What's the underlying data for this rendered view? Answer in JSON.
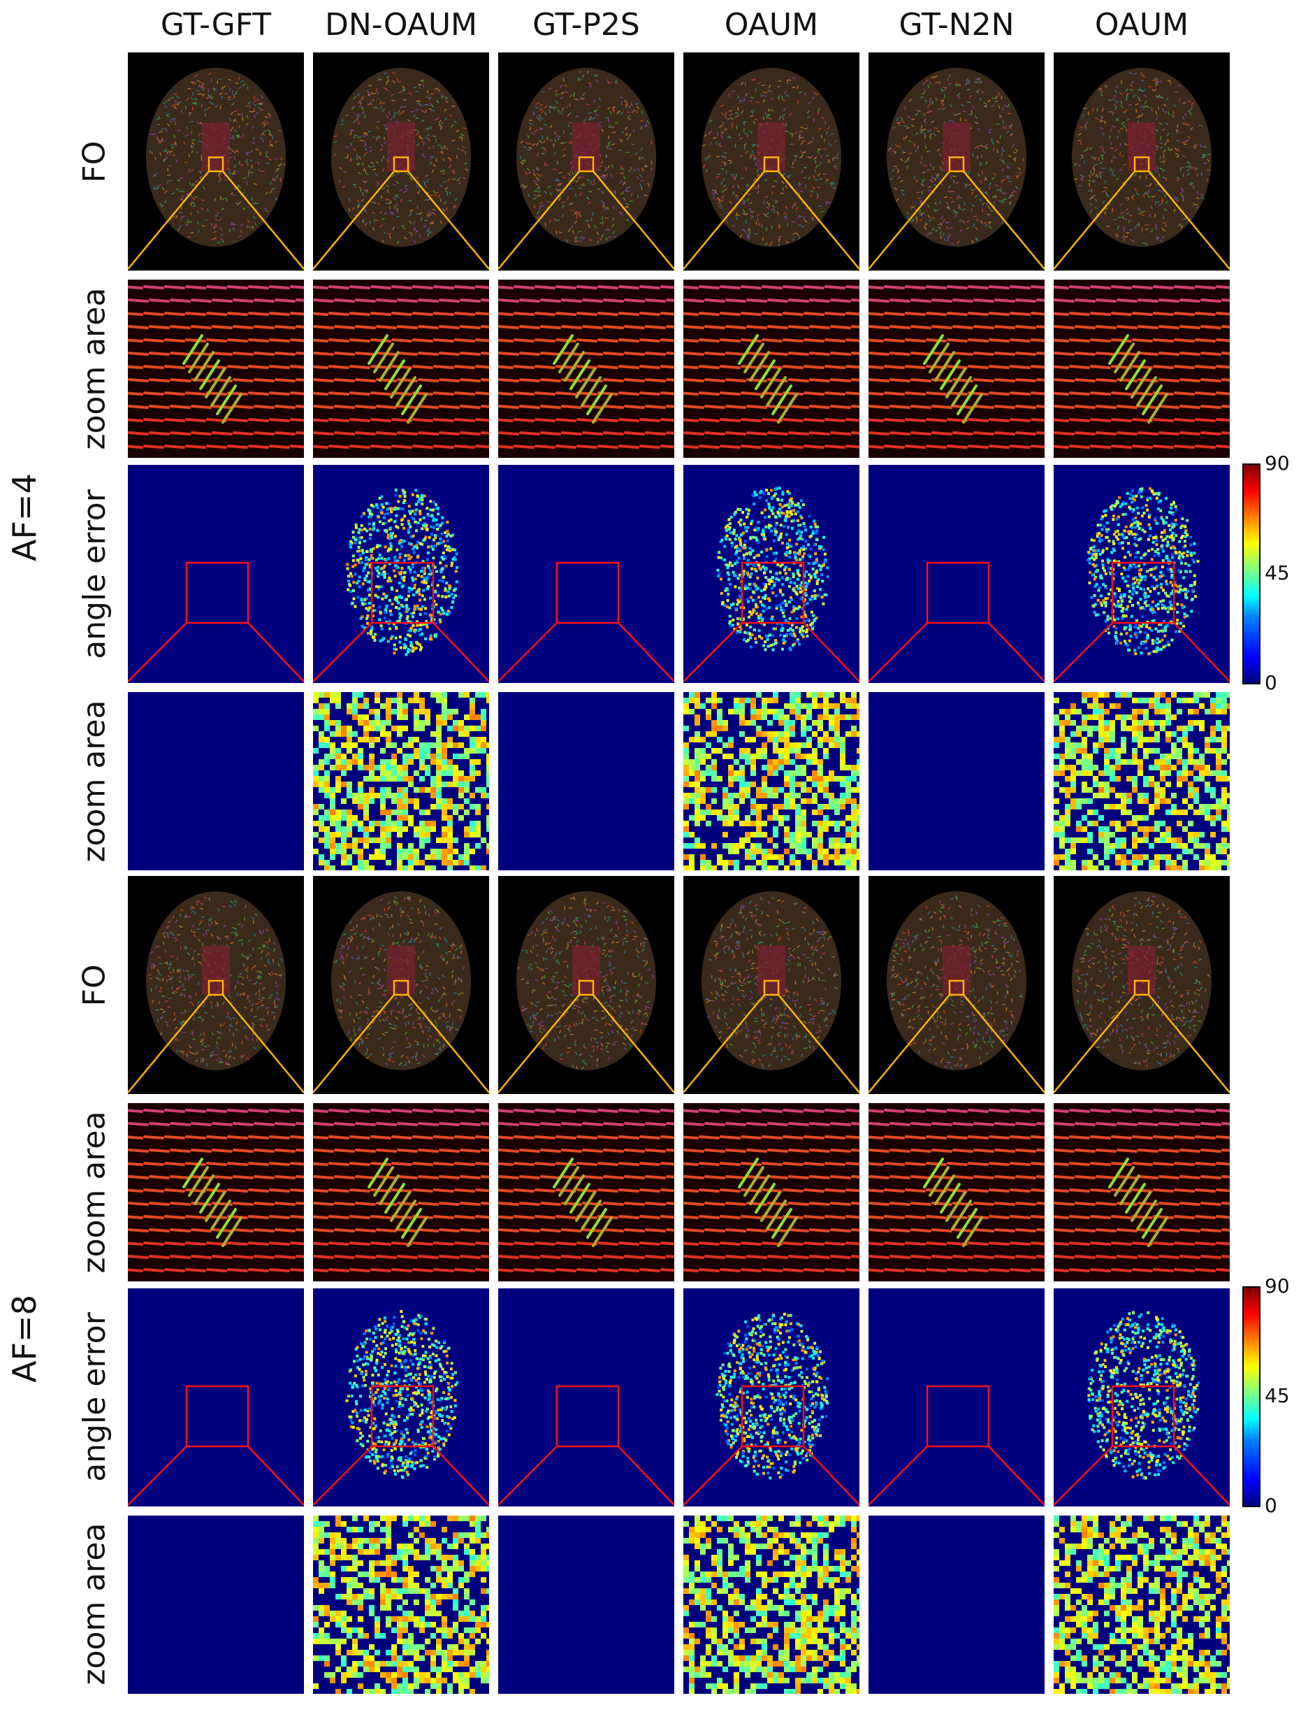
{
  "columns": [
    "GT-GFT",
    "DN-OAUM",
    "GT-P2S",
    "OAUM",
    "GT-N2N",
    "OAUM"
  ],
  "rows": {
    "fo": "FO",
    "zoom": "zoom area",
    "angle": "angle error"
  },
  "groups": [
    "AF=4",
    "AF=8"
  ],
  "colorbar": {
    "max": "90",
    "mid": "45",
    "min": "0"
  },
  "colors": {
    "fo_background": "#000000",
    "error_background": "#00007f",
    "fo_box": "#ffb400",
    "error_box": "#ff1010"
  }
}
